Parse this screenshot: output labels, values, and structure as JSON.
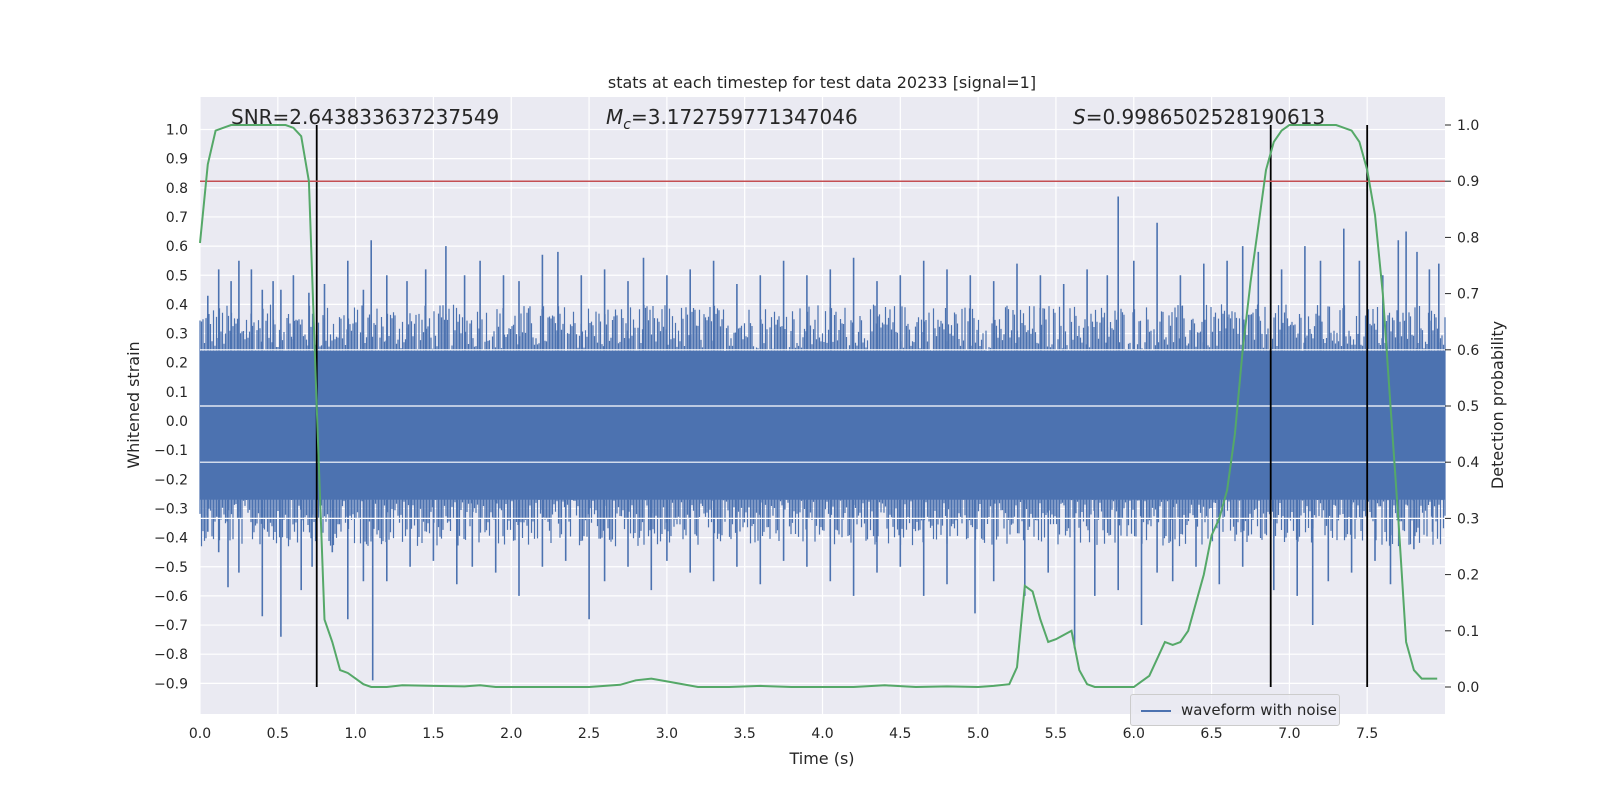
{
  "chart_data": {
    "type": "line",
    "title": "stats at each timestep for test data 20233 [signal=1]",
    "xlabel": "Time (s)",
    "ylabel_left": "Whitened strain",
    "ylabel_right": "Detection probability",
    "xlim": [
      0.0,
      8.0
    ],
    "ylim_left": [
      -0.98,
      1.08
    ],
    "ylim_right": [
      -0.05,
      1.03
    ],
    "x_ticks": [
      "0.0",
      "0.5",
      "1.0",
      "1.5",
      "2.0",
      "2.5",
      "3.0",
      "3.5",
      "4.0",
      "4.5",
      "5.0",
      "5.5",
      "6.0",
      "6.5",
      "7.0",
      "7.5"
    ],
    "y_ticks_left": [
      "1.0",
      "0.9",
      "0.8",
      "0.7",
      "0.6",
      "0.5",
      "0.4",
      "0.3",
      "0.2",
      "0.1",
      "0.0",
      "−0.1",
      "−0.2",
      "−0.3",
      "−0.4",
      "−0.5",
      "−0.6",
      "−0.7",
      "−0.8",
      "−0.9"
    ],
    "y_ticks_right": [
      "1.0",
      "0.9",
      "0.8",
      "0.7",
      "0.6",
      "0.5",
      "0.4",
      "0.3",
      "0.2",
      "0.1",
      "0.0"
    ],
    "annotations": {
      "snr": "SNR=2.643833637237549",
      "mc_symbol": "M",
      "mc_sub": "c",
      "mc_value": "=3.172759771347046",
      "s_symbol": "S",
      "s_value": "=0.9986502528190613"
    },
    "legend": {
      "label": "waveform with noise",
      "location": "lower right"
    },
    "threshold": {
      "value": 0.9,
      "axis": "right",
      "color": "#c44e52"
    },
    "vertical_lines": [
      0.75,
      6.88,
      7.5
    ],
    "waveform": {
      "name": "waveform with noise",
      "color": "#4c72b0",
      "dense_band": [
        -0.27,
        0.24
      ],
      "spikes_up": [
        [
          0.05,
          0.43
        ],
        [
          0.12,
          0.52
        ],
        [
          0.2,
          0.48
        ],
        [
          0.25,
          0.55
        ],
        [
          0.33,
          0.52
        ],
        [
          0.4,
          0.45
        ],
        [
          0.47,
          0.48
        ],
        [
          0.52,
          0.45
        ],
        [
          0.6,
          0.5
        ],
        [
          0.7,
          0.44
        ],
        [
          0.8,
          0.47
        ],
        [
          0.95,
          0.55
        ],
        [
          1.05,
          0.45
        ],
        [
          1.1,
          0.62
        ],
        [
          1.2,
          0.5
        ],
        [
          1.33,
          0.48
        ],
        [
          1.45,
          0.52
        ],
        [
          1.58,
          0.6
        ],
        [
          1.7,
          0.5
        ],
        [
          1.8,
          0.55
        ],
        [
          1.95,
          0.5
        ],
        [
          2.05,
          0.48
        ],
        [
          2.2,
          0.57
        ],
        [
          2.3,
          0.58
        ],
        [
          2.45,
          0.5
        ],
        [
          2.6,
          0.52
        ],
        [
          2.75,
          0.48
        ],
        [
          2.85,
          0.56
        ],
        [
          3.0,
          0.5
        ],
        [
          3.15,
          0.52
        ],
        [
          3.3,
          0.55
        ],
        [
          3.45,
          0.47
        ],
        [
          3.6,
          0.5
        ],
        [
          3.75,
          0.55
        ],
        [
          3.9,
          0.5
        ],
        [
          4.05,
          0.52
        ],
        [
          4.2,
          0.56
        ],
        [
          4.35,
          0.48
        ],
        [
          4.5,
          0.5
        ],
        [
          4.65,
          0.55
        ],
        [
          4.8,
          0.52
        ],
        [
          4.95,
          0.5
        ],
        [
          5.1,
          0.48
        ],
        [
          5.25,
          0.54
        ],
        [
          5.4,
          0.5
        ],
        [
          5.55,
          0.47
        ],
        [
          5.7,
          0.52
        ],
        [
          5.83,
          0.5
        ],
        [
          5.9,
          0.77
        ],
        [
          6.0,
          0.55
        ],
        [
          6.15,
          0.68
        ],
        [
          6.3,
          0.5
        ],
        [
          6.45,
          0.54
        ],
        [
          6.6,
          0.55
        ],
        [
          6.7,
          0.6
        ],
        [
          6.8,
          0.58
        ],
        [
          6.95,
          0.52
        ],
        [
          7.1,
          0.6
        ],
        [
          7.2,
          0.55
        ],
        [
          7.35,
          0.66
        ],
        [
          7.45,
          0.55
        ],
        [
          7.6,
          0.5
        ],
        [
          7.7,
          0.62
        ],
        [
          7.75,
          0.65
        ],
        [
          7.82,
          0.58
        ],
        [
          7.9,
          0.52
        ],
        [
          7.96,
          0.54
        ]
      ],
      "spikes_down": [
        [
          0.05,
          -0.38
        ],
        [
          0.12,
          -0.45
        ],
        [
          0.18,
          -0.57
        ],
        [
          0.25,
          -0.52
        ],
        [
          0.4,
          -0.67
        ],
        [
          0.52,
          -0.74
        ],
        [
          0.65,
          -0.58
        ],
        [
          0.72,
          -0.5
        ],
        [
          0.85,
          -0.45
        ],
        [
          0.95,
          -0.68
        ],
        [
          1.05,
          -0.55
        ],
        [
          1.11,
          -0.89
        ],
        [
          1.2,
          -0.55
        ],
        [
          1.35,
          -0.5
        ],
        [
          1.5,
          -0.48
        ],
        [
          1.65,
          -0.56
        ],
        [
          1.75,
          -0.5
        ],
        [
          1.9,
          -0.52
        ],
        [
          2.05,
          -0.6
        ],
        [
          2.2,
          -0.5
        ],
        [
          2.35,
          -0.48
        ],
        [
          2.5,
          -0.68
        ],
        [
          2.6,
          -0.55
        ],
        [
          2.75,
          -0.5
        ],
        [
          2.9,
          -0.58
        ],
        [
          3.0,
          -0.48
        ],
        [
          3.15,
          -0.52
        ],
        [
          3.3,
          -0.55
        ],
        [
          3.45,
          -0.5
        ],
        [
          3.6,
          -0.56
        ],
        [
          3.75,
          -0.48
        ],
        [
          3.9,
          -0.5
        ],
        [
          4.05,
          -0.55
        ],
        [
          4.2,
          -0.6
        ],
        [
          4.35,
          -0.52
        ],
        [
          4.5,
          -0.5
        ],
        [
          4.65,
          -0.6
        ],
        [
          4.8,
          -0.56
        ],
        [
          4.98,
          -0.66
        ],
        [
          5.1,
          -0.55
        ],
        [
          5.3,
          -0.6
        ],
        [
          5.45,
          -0.52
        ],
        [
          5.62,
          -0.78
        ],
        [
          5.75,
          -0.6
        ],
        [
          5.9,
          -0.58
        ],
        [
          6.05,
          -0.7
        ],
        [
          6.15,
          -0.52
        ],
        [
          6.25,
          -0.55
        ],
        [
          6.4,
          -0.5
        ],
        [
          6.55,
          -0.56
        ],
        [
          6.7,
          -0.5
        ],
        [
          6.9,
          -0.58
        ],
        [
          7.05,
          -0.6
        ],
        [
          7.15,
          -0.7
        ],
        [
          7.25,
          -0.55
        ],
        [
          7.4,
          -0.52
        ],
        [
          7.55,
          -0.48
        ],
        [
          7.65,
          -0.56
        ],
        [
          7.8,
          -0.44
        ],
        [
          7.92,
          -0.38
        ]
      ]
    },
    "probability": {
      "name": "Detection probability",
      "color": "#55a868",
      "x": [
        0.0,
        0.05,
        0.1,
        0.2,
        0.3,
        0.4,
        0.5,
        0.55,
        0.6,
        0.65,
        0.7,
        0.75,
        0.8,
        0.85,
        0.9,
        0.95,
        1.0,
        1.05,
        1.1,
        1.2,
        1.3,
        1.5,
        1.7,
        1.8,
        1.9,
        2.1,
        2.3,
        2.5,
        2.7,
        2.8,
        2.9,
        3.0,
        3.2,
        3.4,
        3.6,
        3.8,
        4.0,
        4.2,
        4.4,
        4.6,
        4.8,
        5.0,
        5.1,
        5.2,
        5.25,
        5.3,
        5.35,
        5.4,
        5.45,
        5.5,
        5.6,
        5.65,
        5.7,
        5.75,
        5.85,
        6.0,
        6.1,
        6.15,
        6.2,
        6.25,
        6.3,
        6.35,
        6.4,
        6.45,
        6.5,
        6.55,
        6.6,
        6.65,
        6.7,
        6.75,
        6.8,
        6.85,
        6.9,
        6.95,
        7.0,
        7.1,
        7.2,
        7.3,
        7.4,
        7.45,
        7.5,
        7.55,
        7.6,
        7.65,
        7.7,
        7.75,
        7.8,
        7.85,
        7.9,
        7.95
      ],
      "y": [
        0.79,
        0.93,
        0.99,
        1.0,
        1.0,
        1.0,
        1.0,
        1.0,
        0.995,
        0.98,
        0.9,
        0.5,
        0.12,
        0.08,
        0.03,
        0.025,
        0.015,
        0.005,
        0.0,
        0.0,
        0.003,
        0.002,
        0.001,
        0.003,
        0.0,
        0.0,
        0.0,
        0.0,
        0.004,
        0.012,
        0.015,
        0.01,
        0.0,
        0.0,
        0.002,
        0.0,
        0.0,
        0.0,
        0.003,
        0.0,
        0.001,
        0.0,
        0.002,
        0.005,
        0.035,
        0.18,
        0.17,
        0.12,
        0.08,
        0.085,
        0.1,
        0.03,
        0.005,
        0.0,
        0.0,
        0.0,
        0.02,
        0.05,
        0.08,
        0.075,
        0.08,
        0.1,
        0.15,
        0.2,
        0.27,
        0.3,
        0.35,
        0.45,
        0.6,
        0.72,
        0.82,
        0.92,
        0.97,
        0.99,
        1.0,
        1.0,
        1.0,
        1.0,
        0.99,
        0.97,
        0.92,
        0.84,
        0.7,
        0.5,
        0.3,
        0.08,
        0.03,
        0.015,
        0.015,
        0.015
      ]
    }
  }
}
